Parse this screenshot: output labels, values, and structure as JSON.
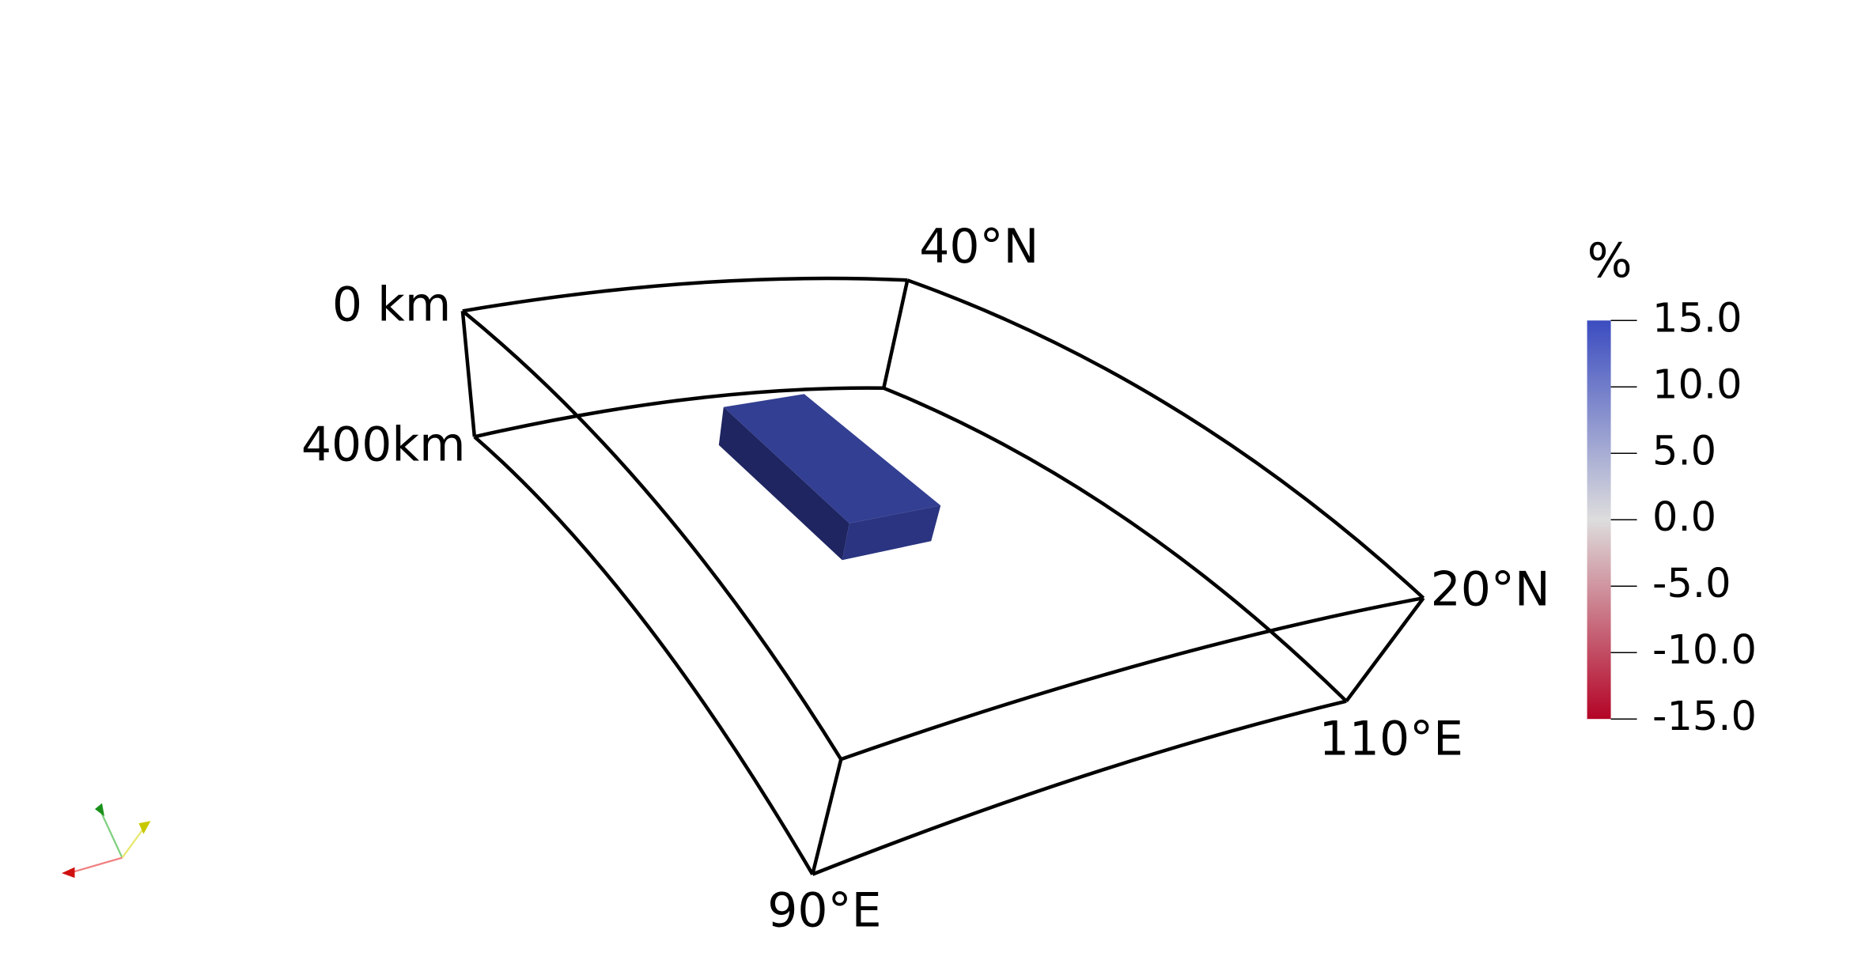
{
  "labels": {
    "top_depth": "0 km",
    "bottom_depth": "400km",
    "north_lat": "40°N",
    "south_lat": "20°N",
    "west_lon": "90°E",
    "east_lon": "110°E"
  },
  "colorbar": {
    "title": "%",
    "range": [
      -15,
      15
    ],
    "colors": [
      "#b40426",
      "#dddddd",
      "#3b4cc0"
    ],
    "ticks": [
      {
        "value": 15,
        "label": "15.0"
      },
      {
        "value": 10,
        "label": "10.0"
      },
      {
        "value": 5,
        "label": "5.0"
      },
      {
        "value": 0,
        "label": "0.0"
      },
      {
        "value": -5,
        "label": "-5.0"
      },
      {
        "value": -10,
        "label": "-10.0"
      },
      {
        "value": -15,
        "label": "-15.0"
      }
    ]
  }
}
